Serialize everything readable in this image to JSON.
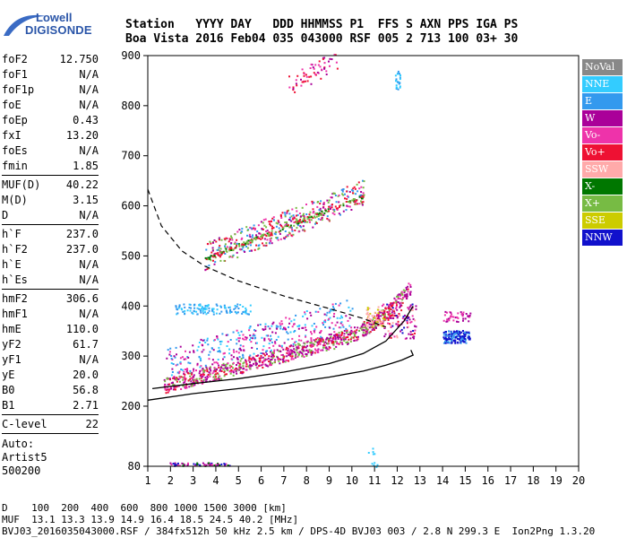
{
  "logo": {
    "line1": "Lowell",
    "line2": "DIGISONDE"
  },
  "header": {
    "labels": "Station   YYYY DAY   DDD HHMMSS P1  FFS S AXN PPS IGA PS",
    "values": "Boa Vista 2016 Feb04 035 043000 RSF 005 2 713 100 03+ 30"
  },
  "params": {
    "group1": [
      {
        "name": "foF2",
        "value": "12.750"
      },
      {
        "name": "foF1",
        "value": "N/A"
      },
      {
        "name": "foF1p",
        "value": "N/A"
      },
      {
        "name": "foE",
        "value": "N/A"
      },
      {
        "name": "foEp",
        "value": "0.43"
      },
      {
        "name": "fxI",
        "value": "13.20"
      },
      {
        "name": "foEs",
        "value": "N/A"
      },
      {
        "name": "fmin",
        "value": "1.85"
      }
    ],
    "group2": [
      {
        "name": "MUF(D)",
        "value": "40.22"
      },
      {
        "name": "M(D)",
        "value": "3.15"
      },
      {
        "name": "D",
        "value": "N/A"
      }
    ],
    "group3": [
      {
        "name": "h`F",
        "value": "237.0"
      },
      {
        "name": "h`F2",
        "value": "237.0"
      },
      {
        "name": "h`E",
        "value": "N/A"
      },
      {
        "name": "h`Es",
        "value": "N/A"
      }
    ],
    "group4": [
      {
        "name": "hmF2",
        "value": "306.6"
      },
      {
        "name": "hmF1",
        "value": "N/A"
      },
      {
        "name": "hmE",
        "value": "110.0"
      },
      {
        "name": "yF2",
        "value": "61.7"
      },
      {
        "name": "yF1",
        "value": "N/A"
      },
      {
        "name": "yE",
        "value": "20.0"
      },
      {
        "name": "B0",
        "value": "56.8"
      },
      {
        "name": "B1",
        "value": "2.71"
      }
    ],
    "group5": [
      {
        "name": "C-level",
        "value": "22"
      }
    ],
    "auto": [
      "Auto:",
      "Artist5",
      "500200"
    ]
  },
  "legend": [
    {
      "label": "NoVal",
      "color": "#888888"
    },
    {
      "label": "NNE",
      "color": "#33ccff"
    },
    {
      "label": "E",
      "color": "#3399ee"
    },
    {
      "label": "W",
      "color": "#aa0099"
    },
    {
      "label": "Vo-",
      "color": "#ee33aa"
    },
    {
      "label": "Vo+",
      "color": "#ee1133"
    },
    {
      "label": "SSW",
      "color": "#ffaaaa"
    },
    {
      "label": "X-",
      "color": "#007700"
    },
    {
      "label": "X+",
      "color": "#77bb44"
    },
    {
      "label": "SSE",
      "color": "#cccc00"
    },
    {
      "label": "NNW",
      "color": "#1111cc"
    }
  ],
  "chart_data": {
    "type": "scatter",
    "xlim": [
      1,
      20
    ],
    "ylim": [
      80,
      900
    ],
    "x_ticks": [
      "1",
      "2",
      "3",
      "4",
      "5",
      "6",
      "7",
      "8",
      "9",
      "10",
      "11",
      "12",
      "13",
      "14",
      "15",
      "16",
      "17",
      "18",
      "19",
      "20"
    ],
    "y_ticks": [
      "80",
      "200",
      "300",
      "400",
      "500",
      "600",
      "700",
      "800",
      "900"
    ],
    "profile_curve": [
      [
        1.0,
        212
      ],
      [
        3,
        225
      ],
      [
        5,
        235
      ],
      [
        7,
        245
      ],
      [
        9,
        258
      ],
      [
        10.5,
        270
      ],
      [
        11.5,
        282
      ],
      [
        12.2,
        292
      ],
      [
        12.7,
        302
      ],
      [
        12.6,
        312
      ]
    ],
    "dashed_curve": [
      [
        1.0,
        633
      ],
      [
        1.6,
        560
      ],
      [
        2.5,
        510
      ],
      [
        3.5,
        480
      ],
      [
        5,
        450
      ],
      [
        7,
        420
      ],
      [
        9,
        395
      ],
      [
        10.5,
        375
      ],
      [
        11.5,
        358
      ]
    ],
    "trace_curve": [
      [
        1.2,
        235
      ],
      [
        3,
        245
      ],
      [
        5,
        255
      ],
      [
        7,
        268
      ],
      [
        9,
        285
      ],
      [
        10.5,
        305
      ],
      [
        11.5,
        330
      ],
      [
        12.3,
        370
      ],
      [
        12.7,
        400
      ]
    ]
  },
  "footer": {
    "line1": "D    100  200  400  600  800 1000 1500 3000 [km]",
    "line2": "MUF  13.1 13.3 13.9 14.9 16.4 18.5 24.5 40.2 [MHz]",
    "line3": "BVJ03_2016035043000.RSF / 384fx512h 50 kHz 2.5 km / DPS-4D BVJ03 003 / 2.8 N 299.3 E  Ion2Png 1.3.20"
  }
}
